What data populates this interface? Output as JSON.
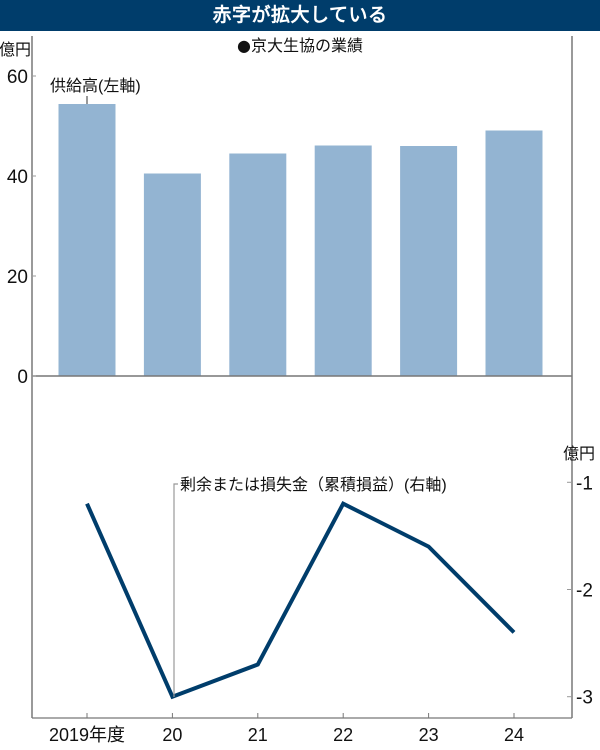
{
  "header": {
    "title": "赤字が拡大している"
  },
  "subtitle": "●京大生協の業績",
  "colors": {
    "header_bg": "#003d6b",
    "bar": "#93b4d2",
    "line": "#003d6b",
    "axis": "#999999"
  },
  "left_axis": {
    "unit": "億円",
    "ticks": [
      "60",
      "40",
      "20",
      "0"
    ]
  },
  "right_axis": {
    "unit": "億円",
    "ticks": [
      "-1",
      "-2",
      "-3"
    ]
  },
  "x_axis": {
    "ticks": [
      "2019年度",
      "20",
      "21",
      "22",
      "23",
      "24"
    ]
  },
  "annotations": {
    "bars": "供給高(左軸)",
    "line": "剰余または損失金（累積損益）(右軸)"
  },
  "chart_data": {
    "type": "bar+line",
    "title": "赤字が拡大している",
    "subtitle": "●京大生協の業績",
    "categories": [
      "2019年度",
      "20",
      "21",
      "22",
      "23",
      "24"
    ],
    "series": [
      {
        "name": "供給高(左軸)",
        "type": "bar",
        "axis": "left",
        "unit": "億円",
        "values": [
          54.4,
          40.5,
          44.5,
          46.1,
          46.0,
          49.1
        ]
      },
      {
        "name": "剰余または損失金（累積損益）(右軸)",
        "type": "line",
        "axis": "right",
        "unit": "億円",
        "values": [
          -1.2,
          -3.0,
          -2.7,
          -1.2,
          -1.6,
          -2.4
        ]
      }
    ],
    "left_ylim": [
      0,
      60
    ],
    "right_ylim": [
      -3,
      -1
    ],
    "left_yticks": [
      0,
      20,
      40,
      60
    ],
    "right_yticks": [
      -1,
      -2,
      -3
    ],
    "xlabel": "",
    "ylabel_left": "億円",
    "ylabel_right": "億円",
    "grid": false,
    "legend": "inline annotations"
  }
}
